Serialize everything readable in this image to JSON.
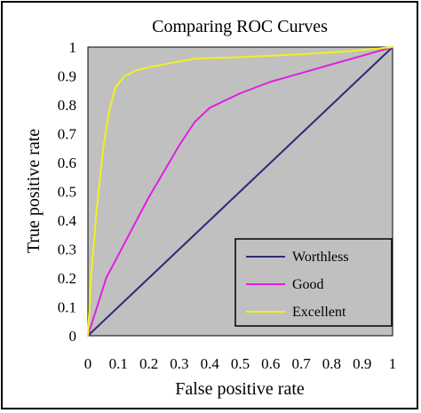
{
  "chart_data": {
    "type": "line",
    "title": "Comparing ROC Curves",
    "xlabel": "False positive rate",
    "ylabel": "True positive rate",
    "xlim": [
      0,
      1
    ],
    "ylim": [
      0,
      1
    ],
    "x_ticks": [
      "0",
      "0.1",
      "0.2",
      "0.3",
      "0.4",
      "0.5",
      "0.6",
      "0.7",
      "0.8",
      "0.9",
      "1"
    ],
    "y_ticks": [
      "0",
      "0.1",
      "0.2",
      "0.3",
      "0.4",
      "0.5",
      "0.6",
      "0.7",
      "0.8",
      "0.9",
      "1"
    ],
    "grid": false,
    "plot_background": "#c0c0c0",
    "legend_position": "bottom-right",
    "series": [
      {
        "name": "Worthless",
        "color": "#2b2b7a",
        "points": [
          [
            0,
            0
          ],
          [
            0.1,
            0.1
          ],
          [
            0.2,
            0.2
          ],
          [
            0.3,
            0.3
          ],
          [
            0.4,
            0.4
          ],
          [
            0.5,
            0.5
          ],
          [
            0.6,
            0.6
          ],
          [
            0.7,
            0.7
          ],
          [
            0.8,
            0.8
          ],
          [
            0.9,
            0.9
          ],
          [
            1,
            1
          ]
        ]
      },
      {
        "name": "Good",
        "color": "#e020e0",
        "points": [
          [
            0,
            0
          ],
          [
            0.03,
            0.1
          ],
          [
            0.06,
            0.2
          ],
          [
            0.1,
            0.28
          ],
          [
            0.15,
            0.38
          ],
          [
            0.2,
            0.48
          ],
          [
            0.25,
            0.57
          ],
          [
            0.3,
            0.66
          ],
          [
            0.35,
            0.74
          ],
          [
            0.4,
            0.79
          ],
          [
            0.5,
            0.84
          ],
          [
            0.6,
            0.88
          ],
          [
            0.7,
            0.91
          ],
          [
            0.8,
            0.94
          ],
          [
            0.9,
            0.97
          ],
          [
            1,
            1
          ]
        ]
      },
      {
        "name": "Excellent",
        "color": "#f0f020",
        "points": [
          [
            0,
            0
          ],
          [
            0.01,
            0.2
          ],
          [
            0.03,
            0.45
          ],
          [
            0.05,
            0.65
          ],
          [
            0.07,
            0.78
          ],
          [
            0.09,
            0.86
          ],
          [
            0.12,
            0.9
          ],
          [
            0.16,
            0.92
          ],
          [
            0.2,
            0.93
          ],
          [
            0.25,
            0.94
          ],
          [
            0.35,
            0.96
          ],
          [
            0.5,
            0.965
          ],
          [
            0.7,
            0.975
          ],
          [
            0.85,
            0.985
          ],
          [
            1,
            1
          ]
        ]
      }
    ]
  }
}
